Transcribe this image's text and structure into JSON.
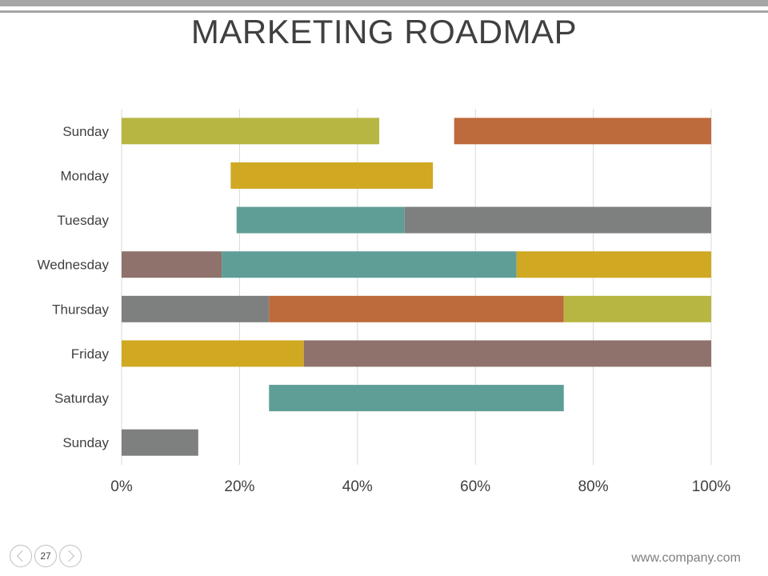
{
  "title": "MARKETING ROADMAP",
  "page_number": "27",
  "website": "www.company.com",
  "chart_data": {
    "type": "bar",
    "orientation": "horizontal",
    "stacked": true,
    "title": "MARKETING ROADMAP",
    "categories": [
      "Sunday",
      "Monday",
      "Tuesday",
      "Wednesday",
      "Thursday",
      "Friday",
      "Saturday",
      "Sunday"
    ],
    "xlim": [
      0,
      100
    ],
    "x_ticks": [
      "0%",
      "20%",
      "40%",
      "60%",
      "80%",
      "100%"
    ],
    "grid": "vertical",
    "legend": "none",
    "segments": [
      [
        {
          "start": 0,
          "end": 43.7,
          "color": "#b7b642"
        },
        {
          "start": 56.4,
          "end": 100,
          "color": "#bd6a3c"
        }
      ],
      [
        {
          "start": 18.5,
          "end": 52.8,
          "color": "#d0a822"
        }
      ],
      [
        {
          "start": 19.5,
          "end": 48.0,
          "color": "#5f9e97"
        },
        {
          "start": 48.0,
          "end": 100,
          "color": "#7d807f"
        }
      ],
      [
        {
          "start": 0,
          "end": 17.0,
          "color": "#8f726b"
        },
        {
          "start": 17.0,
          "end": 67.0,
          "color": "#5f9e97"
        },
        {
          "start": 67.0,
          "end": 100,
          "color": "#d0a822"
        }
      ],
      [
        {
          "start": 0,
          "end": 25.0,
          "color": "#7d807f"
        },
        {
          "start": 25.0,
          "end": 75.0,
          "color": "#bd6a3c"
        },
        {
          "start": 75.0,
          "end": 100,
          "color": "#b7b642"
        }
      ],
      [
        {
          "start": 0,
          "end": 30.9,
          "color": "#d0a822"
        },
        {
          "start": 30.9,
          "end": 100,
          "color": "#8f726b"
        }
      ],
      [
        {
          "start": 25.0,
          "end": 75.0,
          "color": "#5f9e97"
        }
      ],
      [
        {
          "start": 0,
          "end": 13.0,
          "color": "#7d807f"
        }
      ]
    ]
  }
}
